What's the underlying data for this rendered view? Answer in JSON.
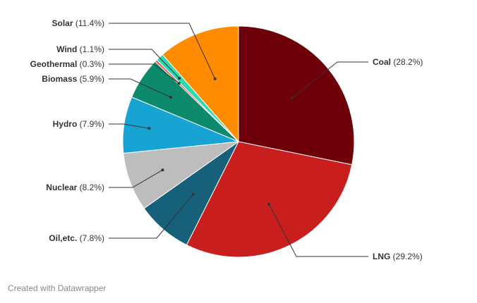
{
  "chart_data": {
    "type": "pie",
    "title": "",
    "slices": [
      {
        "label": "Coal",
        "value": 28.2,
        "display": "(28.2%)",
        "color": "#6e0009"
      },
      {
        "label": "LNG",
        "value": 29.2,
        "display": "(29.2%)",
        "color": "#c91e1e"
      },
      {
        "label": "Oil,etc.",
        "value": 7.8,
        "display": "(7.8%)",
        "color": "#16607a"
      },
      {
        "label": "Nuclear",
        "value": 8.2,
        "display": "(8.2%)",
        "color": "#bdbdbd"
      },
      {
        "label": "Hydro",
        "value": 7.9,
        "display": "(7.9%)",
        "color": "#18a4d3"
      },
      {
        "label": "Biomass",
        "value": 5.9,
        "display": "(5.9%)",
        "color": "#0d8a6c"
      },
      {
        "label": "Geothermal",
        "value": 0.3,
        "display": "(0.3%)",
        "color": "#e8453c"
      },
      {
        "label": "Wind",
        "value": 1.1,
        "display": "(1.1%)",
        "color": "#2ed9b2"
      },
      {
        "label": "Solar",
        "value": 11.4,
        "display": "(11.4%)",
        "color": "#ff8c00"
      }
    ]
  },
  "footer": {
    "credit": "Created with Datawrapper"
  }
}
